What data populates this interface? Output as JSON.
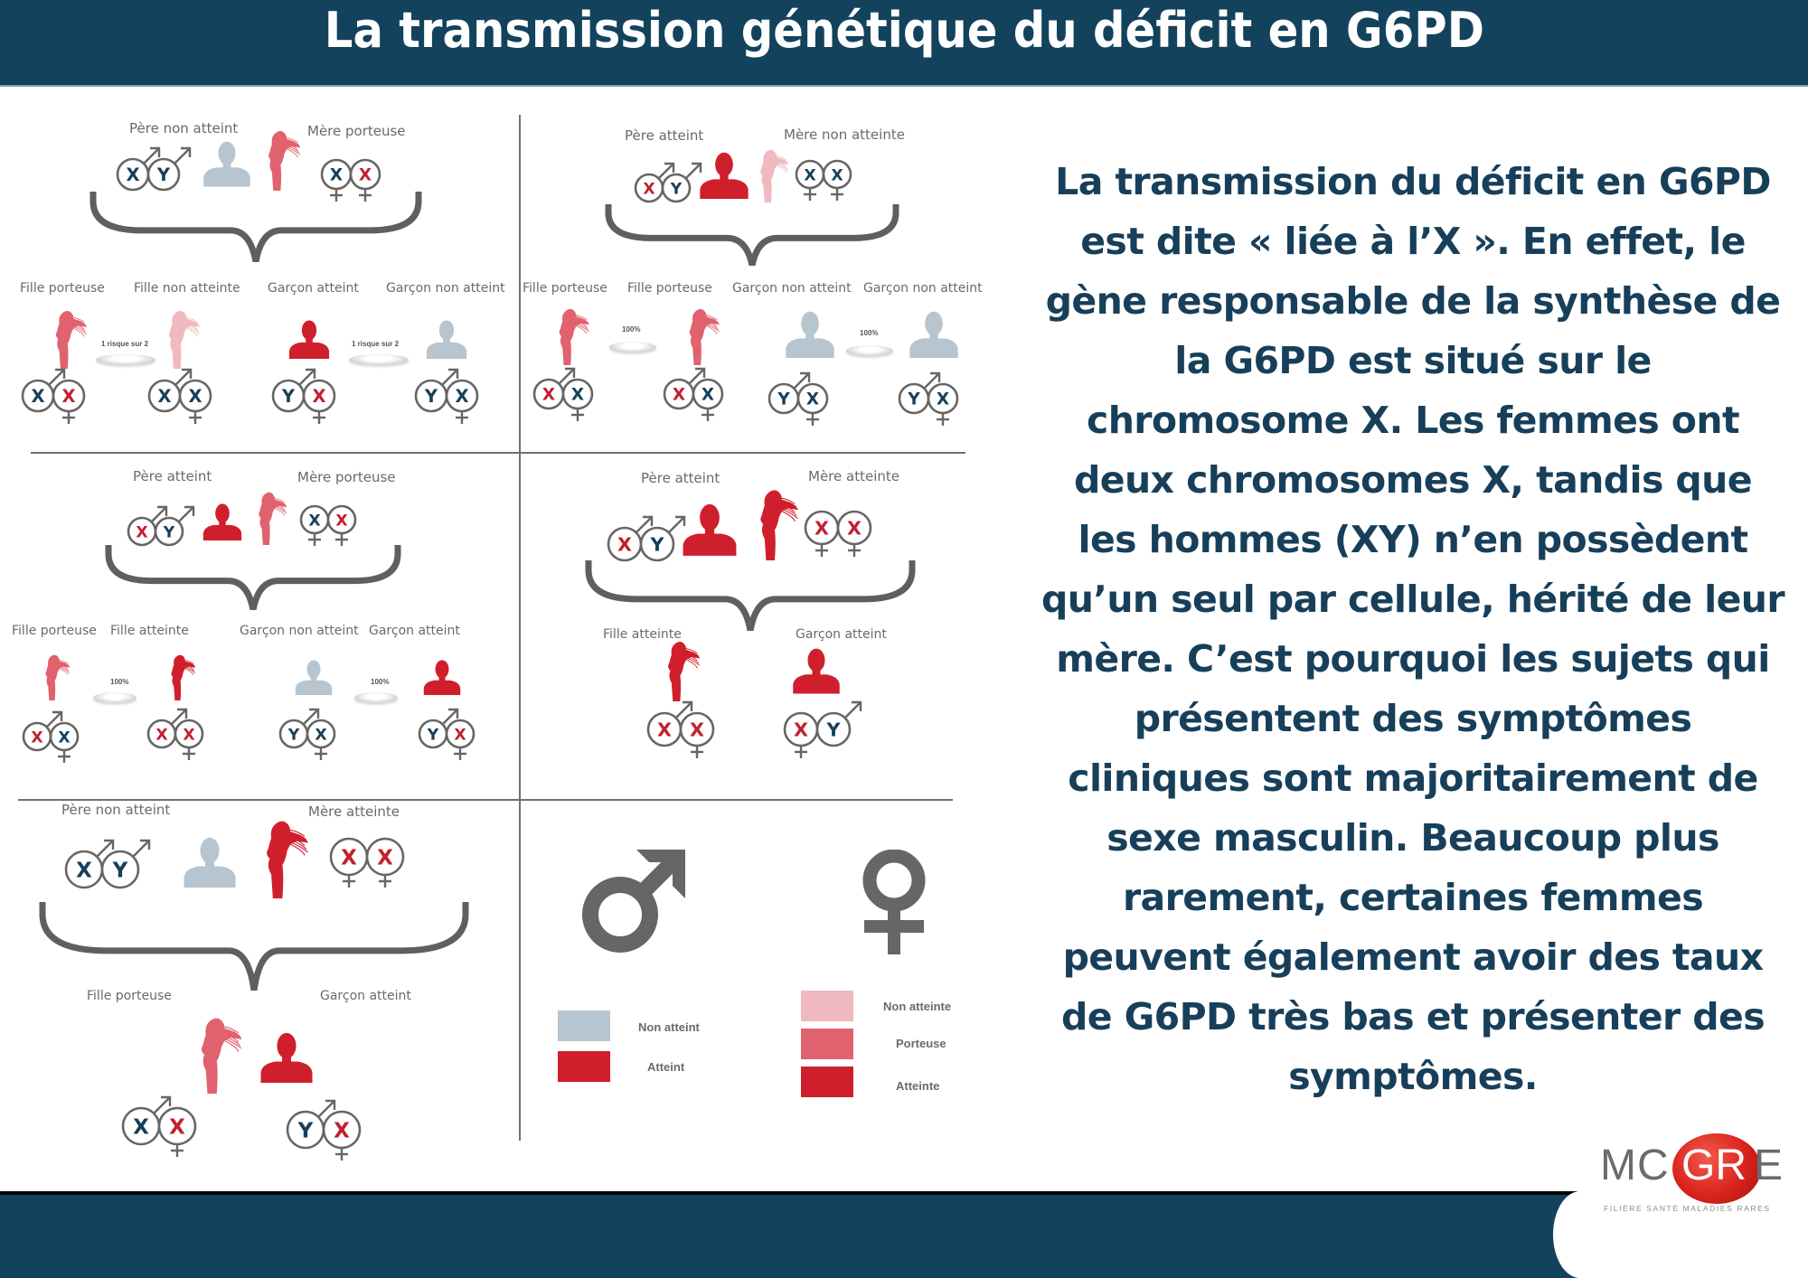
{
  "header": {
    "title": "La transmission génétique du déficit en G6PD"
  },
  "colors": {
    "navy": "#13425c",
    "text_navy": "#173f5a",
    "male_non_atteint": "#b6c5cf",
    "atteint": "#d01f2c",
    "female_non_atteinte": "#f0b9bf",
    "porteuse": "#e0626e",
    "symbol_gray": "#666666"
  },
  "panels": [
    {
      "id": "p1",
      "father": {
        "label": "Père non atteint",
        "alleles": [
          "X",
          "Y"
        ],
        "allele_colors": [
          "navy",
          "navy"
        ],
        "status": "non_atteint"
      },
      "mother": {
        "label": "Mère porteuse",
        "alleles": [
          "X",
          "X"
        ],
        "allele_colors": [
          "navy",
          "red"
        ],
        "status": "porteuse"
      },
      "children": [
        {
          "label": "Fille porteuse",
          "alleles": [
            "X",
            "X"
          ],
          "allele_colors": [
            "navy",
            "red"
          ],
          "sex": "F",
          "status": "porteuse"
        },
        {
          "label": "Fille non atteinte",
          "alleles": [
            "X",
            "X"
          ],
          "allele_colors": [
            "navy",
            "navy"
          ],
          "sex": "F",
          "status": "non_atteinte"
        },
        {
          "label": "Garçon atteint",
          "alleles": [
            "Y",
            "X"
          ],
          "allele_colors": [
            "navy",
            "red"
          ],
          "sex": "M",
          "status": "atteint"
        },
        {
          "label": "Garçon non atteint",
          "alleles": [
            "Y",
            "X"
          ],
          "allele_colors": [
            "navy",
            "navy"
          ],
          "sex": "M",
          "status": "non_atteint"
        }
      ],
      "risk_labels": [
        "1 risque sur 2",
        "1 risque sur 2"
      ]
    },
    {
      "id": "p2",
      "father": {
        "label": "Père atteint",
        "alleles": [
          "X",
          "Y"
        ],
        "allele_colors": [
          "red",
          "navy"
        ],
        "status": "atteint"
      },
      "mother": {
        "label": "Mère non atteinte",
        "alleles": [
          "X",
          "X"
        ],
        "allele_colors": [
          "navy",
          "navy"
        ],
        "status": "non_atteinte"
      },
      "children": [
        {
          "label": "Fille porteuse",
          "alleles": [
            "X",
            "X"
          ],
          "allele_colors": [
            "red",
            "navy"
          ],
          "sex": "F",
          "status": "porteuse"
        },
        {
          "label": "Fille porteuse",
          "alleles": [
            "X",
            "X"
          ],
          "allele_colors": [
            "red",
            "navy"
          ],
          "sex": "F",
          "status": "porteuse"
        },
        {
          "label": "Garçon non atteint",
          "alleles": [
            "Y",
            "X"
          ],
          "allele_colors": [
            "navy",
            "navy"
          ],
          "sex": "M",
          "status": "non_atteint"
        },
        {
          "label": "Garçon non atteint",
          "alleles": [
            "Y",
            "X"
          ],
          "allele_colors": [
            "navy",
            "navy"
          ],
          "sex": "M",
          "status": "non_atteint"
        }
      ],
      "risk_labels": [
        "100%",
        "100%"
      ]
    },
    {
      "id": "p3",
      "father": {
        "label": "Père atteint",
        "alleles": [
          "X",
          "Y"
        ],
        "allele_colors": [
          "red",
          "navy"
        ],
        "status": "atteint"
      },
      "mother": {
        "label": "Mère porteuse",
        "alleles": [
          "X",
          "X"
        ],
        "allele_colors": [
          "navy",
          "red"
        ],
        "status": "porteuse"
      },
      "children": [
        {
          "label": "Fille porteuse",
          "alleles": [
            "X",
            "X"
          ],
          "allele_colors": [
            "red",
            "navy"
          ],
          "sex": "F",
          "status": "porteuse"
        },
        {
          "label": "Fille atteinte",
          "alleles": [
            "X",
            "X"
          ],
          "allele_colors": [
            "red",
            "red"
          ],
          "sex": "F",
          "status": "atteinte"
        },
        {
          "label": "Garçon non atteint",
          "alleles": [
            "Y",
            "X"
          ],
          "allele_colors": [
            "navy",
            "navy"
          ],
          "sex": "M",
          "status": "non_atteint"
        },
        {
          "label": "Garçon atteint",
          "alleles": [
            "Y",
            "X"
          ],
          "allele_colors": [
            "navy",
            "red"
          ],
          "sex": "M",
          "status": "atteint"
        }
      ],
      "risk_labels": [
        "100%",
        "100%"
      ]
    },
    {
      "id": "p4",
      "father": {
        "label": "Père atteint",
        "alleles": [
          "X",
          "Y"
        ],
        "allele_colors": [
          "red",
          "navy"
        ],
        "status": "atteint"
      },
      "mother": {
        "label": "Mère atteinte",
        "alleles": [
          "X",
          "X"
        ],
        "allele_colors": [
          "red",
          "red"
        ],
        "status": "atteinte"
      },
      "children": [
        {
          "label": "Fille atteinte",
          "alleles": [
            "X",
            "X"
          ],
          "allele_colors": [
            "red",
            "red"
          ],
          "sex": "F",
          "status": "atteinte"
        },
        {
          "label": "Garçon atteint",
          "alleles": [
            "X",
            "Y"
          ],
          "allele_colors": [
            "red",
            "navy"
          ],
          "sex": "M",
          "status": "atteint"
        }
      ]
    },
    {
      "id": "p5",
      "father": {
        "label": "Père non atteint",
        "alleles": [
          "X",
          "Y"
        ],
        "allele_colors": [
          "navy",
          "navy"
        ],
        "status": "non_atteint"
      },
      "mother": {
        "label": "Mère atteinte",
        "alleles": [
          "X",
          "X"
        ],
        "allele_colors": [
          "red",
          "red"
        ],
        "status": "atteinte"
      },
      "children": [
        {
          "label": "Fille porteuse",
          "alleles": [
            "X",
            "X"
          ],
          "allele_colors": [
            "navy",
            "red"
          ],
          "sex": "F",
          "status": "porteuse"
        },
        {
          "label": "Garçon atteint",
          "alleles": [
            "Y",
            "X"
          ],
          "allele_colors": [
            "navy",
            "red"
          ],
          "sex": "M",
          "status": "atteint"
        }
      ]
    }
  ],
  "legend": {
    "male_symbol": "male-symbol",
    "female_symbol": "female-symbol",
    "male": [
      {
        "label": "Non atteint",
        "color": "#b6c5cf"
      },
      {
        "label": "Atteint",
        "color": "#d01f2c"
      }
    ],
    "female": [
      {
        "label": "Non atteinte",
        "color": "#f0b9bf"
      },
      {
        "label": "Porteuse",
        "color": "#e0626e"
      },
      {
        "label": "Atteinte",
        "color": "#d01f2c"
      }
    ]
  },
  "paragraph": {
    "lines": [
      "La transmission du déficit en G6PD",
      "est dite « liée à l’X ». En effet, le",
      "gène responsable de la synthèse de",
      "la G6PD est situé sur le",
      "chromosome X. Les femmes ont",
      "deux chromosomes X, tandis que",
      "les hommes (XY) n’en possèdent",
      "qu’un seul par cellule, hérité de leur",
      "mère. C’est pourquoi les sujets qui",
      "présentent des symptômes",
      "cliniques sont majoritairement de",
      "sexe masculin. Beaucoup plus",
      "rarement, certaines femmes",
      "peuvent également avoir des taux",
      "de G6PD très bas et présenter des",
      "symptômes."
    ]
  },
  "logo": {
    "text_left": "MC",
    "text_ball": "GR",
    "text_right": "E",
    "subtitle": "FILIÈRE SANTÉ MALADIES RARES"
  }
}
